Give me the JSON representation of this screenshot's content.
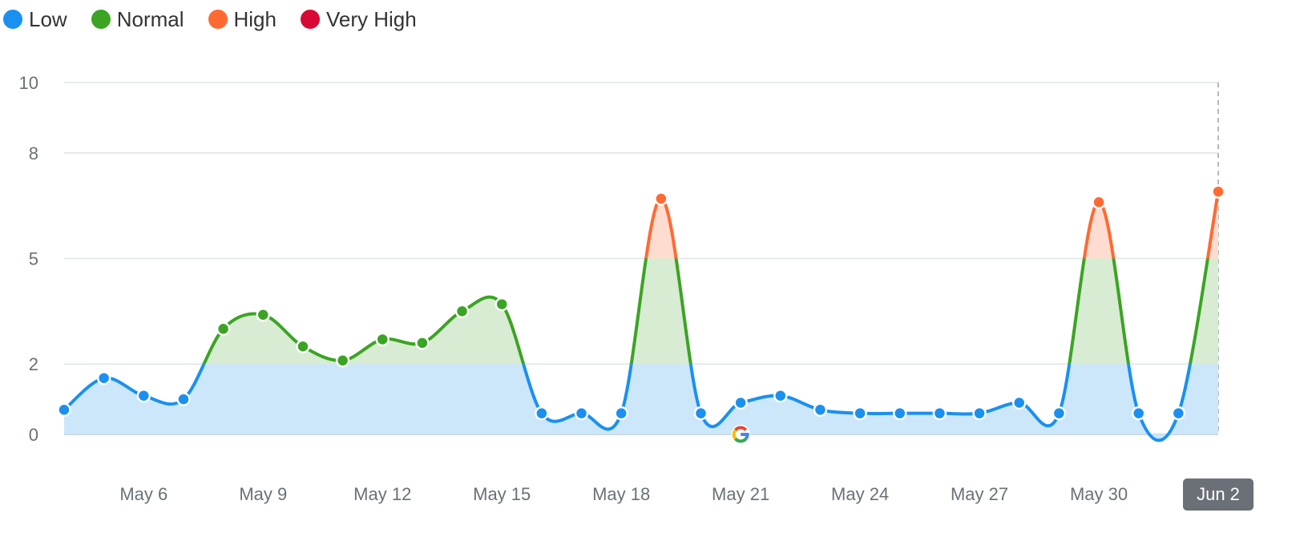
{
  "legend": [
    {
      "key": "low",
      "label": "Low",
      "color": "#1a90f0"
    },
    {
      "key": "normal",
      "label": "Normal",
      "color": "#3ba423"
    },
    {
      "key": "high",
      "label": "High",
      "color": "#ff6a33"
    },
    {
      "key": "very_high",
      "label": "Very High",
      "color": "#d70a35"
    }
  ],
  "chart_data": {
    "type": "area",
    "title": "",
    "xlabel": "",
    "ylabel": "",
    "ylim": [
      0,
      10
    ],
    "yticks": [
      0,
      2,
      5,
      8,
      10
    ],
    "xticks": [
      "May 6",
      "May 9",
      "May 12",
      "May 15",
      "May 18",
      "May 21",
      "May 24",
      "May 27",
      "May 30",
      "Jun 2"
    ],
    "x": [
      "May 4",
      "May 5",
      "May 6",
      "May 7",
      "May 8",
      "May 9",
      "May 10",
      "May 11",
      "May 12",
      "May 13",
      "May 14",
      "May 15",
      "May 16",
      "May 17",
      "May 18",
      "May 19",
      "May 20",
      "May 21",
      "May 22",
      "May 23",
      "May 24",
      "May 25",
      "May 26",
      "May 27",
      "May 28",
      "May 29",
      "May 30",
      "May 31",
      "Jun 1",
      "Jun 2"
    ],
    "values": [
      0.7,
      1.6,
      1.1,
      1.0,
      3.0,
      3.4,
      2.5,
      2.1,
      2.7,
      2.6,
      3.5,
      3.7,
      0.6,
      0.6,
      0.6,
      6.7,
      0.6,
      0.9,
      1.1,
      0.7,
      0.6,
      0.6,
      0.6,
      0.6,
      0.9,
      0.6,
      6.6,
      0.6,
      0.6,
      6.9
    ],
    "thresholds": [
      {
        "name": "Low",
        "min": 0,
        "max": 2,
        "color": "#1a90f0",
        "fill": "#cce6fa"
      },
      {
        "name": "Normal",
        "min": 2,
        "max": 5,
        "color": "#3ba423",
        "fill": "#d8ebd3"
      },
      {
        "name": "High",
        "min": 5,
        "max": 8,
        "color": "#ff6a33",
        "fill": "#ffdcd0"
      },
      {
        "name": "Very High",
        "min": 8,
        "max": 10,
        "color": "#d70a35",
        "fill": "#f7ccd5"
      }
    ],
    "google_update_marker": {
      "x": "May 21",
      "icon": "google-g-icon"
    },
    "selected_date": "Jun 2",
    "grid": true,
    "legend_position": "top-left"
  }
}
